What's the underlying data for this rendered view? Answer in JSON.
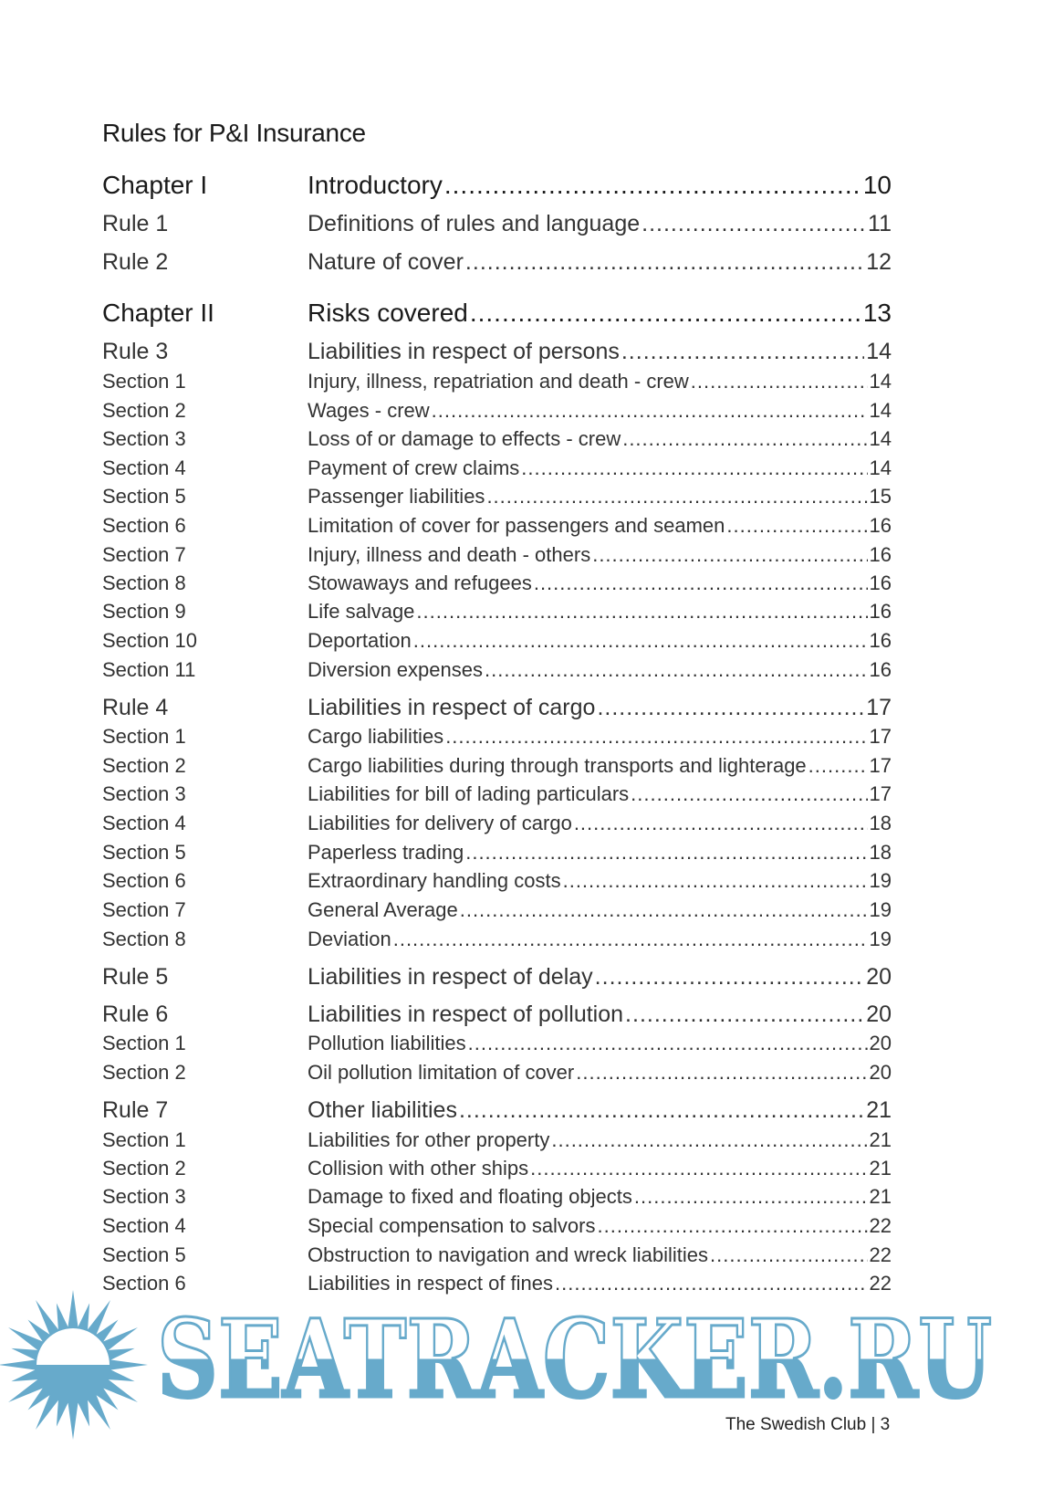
{
  "title": "Rules for P&I Insurance",
  "entries": [
    {
      "type": "chapter",
      "label": "Chapter I",
      "title": "Introductory",
      "page": "10"
    },
    {
      "type": "rule",
      "label": "Rule 1",
      "title": "Definitions of rules and language",
      "page": "11"
    },
    {
      "type": "rule",
      "label": "Rule 2",
      "title": "Nature of cover",
      "page": "12"
    },
    {
      "type": "chapter",
      "label": "Chapter II",
      "title": "Risks covered",
      "page": "13"
    },
    {
      "type": "rule",
      "label": "Rule 3",
      "title": "Liabilities in respect of persons",
      "page": "14"
    },
    {
      "type": "section",
      "label": "Section 1",
      "title": "Injury, illness, repatriation and death - crew",
      "page": "14"
    },
    {
      "type": "section",
      "label": "Section 2",
      "title": "Wages - crew",
      "page": "14"
    },
    {
      "type": "section",
      "label": "Section 3",
      "title": "Loss of or damage to effects - crew",
      "page": "14"
    },
    {
      "type": "section",
      "label": "Section 4",
      "title": "Payment of crew claims",
      "page": "14"
    },
    {
      "type": "section",
      "label": "Section 5",
      "title": "Passenger liabilities",
      "page": "15"
    },
    {
      "type": "section",
      "label": "Section 6",
      "title": "Limitation of cover for passengers and seamen",
      "page": "16"
    },
    {
      "type": "section",
      "label": "Section 7",
      "title": "Injury, illness and death - others",
      "page": "16"
    },
    {
      "type": "section",
      "label": "Section 8",
      "title": "Stowaways and refugees",
      "page": "16"
    },
    {
      "type": "section",
      "label": "Section 9",
      "title": "Life salvage",
      "page": "16"
    },
    {
      "type": "section",
      "label": "Section 10",
      "title": "Deportation",
      "page": "16"
    },
    {
      "type": "section",
      "label": "Section 11",
      "title": "Diversion expenses",
      "page": "16"
    },
    {
      "type": "rule",
      "label": "Rule 4",
      "title": "Liabilities in respect of cargo",
      "page": "17"
    },
    {
      "type": "section",
      "label": "Section 1",
      "title": "Cargo liabilities",
      "page": "17"
    },
    {
      "type": "section",
      "label": "Section 2",
      "title": "Cargo liabilities during through transports and lighterage",
      "page": "17"
    },
    {
      "type": "section",
      "label": "Section 3",
      "title": "Liabilities for bill of lading particulars",
      "page": "17"
    },
    {
      "type": "section",
      "label": "Section 4",
      "title": "Liabilities for delivery of cargo",
      "page": "18"
    },
    {
      "type": "section",
      "label": "Section 5",
      "title": "Paperless trading",
      "page": "18"
    },
    {
      "type": "section",
      "label": "Section 6",
      "title": "Extraordinary handling costs",
      "page": "19"
    },
    {
      "type": "section",
      "label": "Section 7",
      "title": "General Average",
      "page": "19"
    },
    {
      "type": "section",
      "label": "Section 8",
      "title": "Deviation",
      "page": "19"
    },
    {
      "type": "rule",
      "label": "Rule 5",
      "title": "Liabilities in respect of delay",
      "page": "20"
    },
    {
      "type": "rule",
      "label": "Rule 6",
      "title": "Liabilities in respect of pollution",
      "page": "20"
    },
    {
      "type": "section",
      "label": "Section 1",
      "title": "Pollution liabilities",
      "page": "20"
    },
    {
      "type": "section",
      "label": "Section 2",
      "title": "Oil pollution limitation of cover",
      "page": "20"
    },
    {
      "type": "rule",
      "label": "Rule 7",
      "title": "Other liabilities",
      "page": "21"
    },
    {
      "type": "section",
      "label": "Section 1",
      "title": "Liabilities for other property",
      "page": "21"
    },
    {
      "type": "section",
      "label": "Section 2",
      "title": "Collision with other ships",
      "page": "21"
    },
    {
      "type": "section",
      "label": "Section 3",
      "title": "Damage to fixed and floating objects",
      "page": "21"
    },
    {
      "type": "section",
      "label": "Section 4",
      "title": "Special compensation to salvors",
      "page": "22"
    },
    {
      "type": "section",
      "label": "Section 5",
      "title": "Obstruction to navigation and wreck liabilities",
      "page": "22"
    },
    {
      "type": "section",
      "label": "Section 6",
      "title": "Liabilities in respect of fines",
      "page": "22"
    }
  ],
  "footer": {
    "text": "The Swedish Club | 3"
  },
  "watermark": {
    "text": "SEATRACKER.RU",
    "color": "#67aacb",
    "icon": "sun-icon"
  }
}
